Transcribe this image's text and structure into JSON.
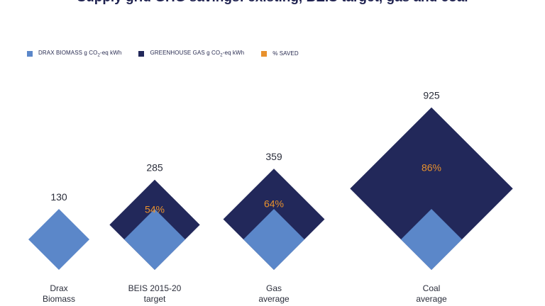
{
  "title": "Supply grid GHG savings: existing, BEIS target, gas and coal",
  "legend": {
    "biomass": {
      "pre": "DRAX BIOMASS g CO",
      "sub": "2",
      "post": "-eq kWh",
      "color": "#5b87c9"
    },
    "ghg": {
      "pre": "GREENHOUSE GAS g CO",
      "sub": "2",
      "post": "-eq kWh",
      "color": "#22285a"
    },
    "saved": {
      "label": "% SAVED",
      "color": "#e8912d"
    }
  },
  "chart_data": {
    "type": "area",
    "title": "Supply grid GHG savings",
    "categories": [
      [
        "Drax",
        "Biomass"
      ],
      [
        "BEIS 2015-20",
        "target"
      ],
      [
        "Gas",
        "average"
      ],
      [
        "Coal",
        "average"
      ]
    ],
    "series": [
      {
        "name": "DRAX BIOMASS g CO2-eq kWh",
        "values": [
          130,
          130,
          130,
          130
        ]
      },
      {
        "name": "GREENHOUSE GAS g CO2-eq kWh",
        "values": [
          130,
          285,
          359,
          925
        ]
      },
      {
        "name": "% SAVED",
        "values": [
          null,
          54,
          64,
          86
        ]
      }
    ],
    "value_labels": [
      "130",
      "285",
      "359",
      "925"
    ],
    "saved_labels": [
      "",
      "54%",
      "64%",
      "86%"
    ]
  }
}
